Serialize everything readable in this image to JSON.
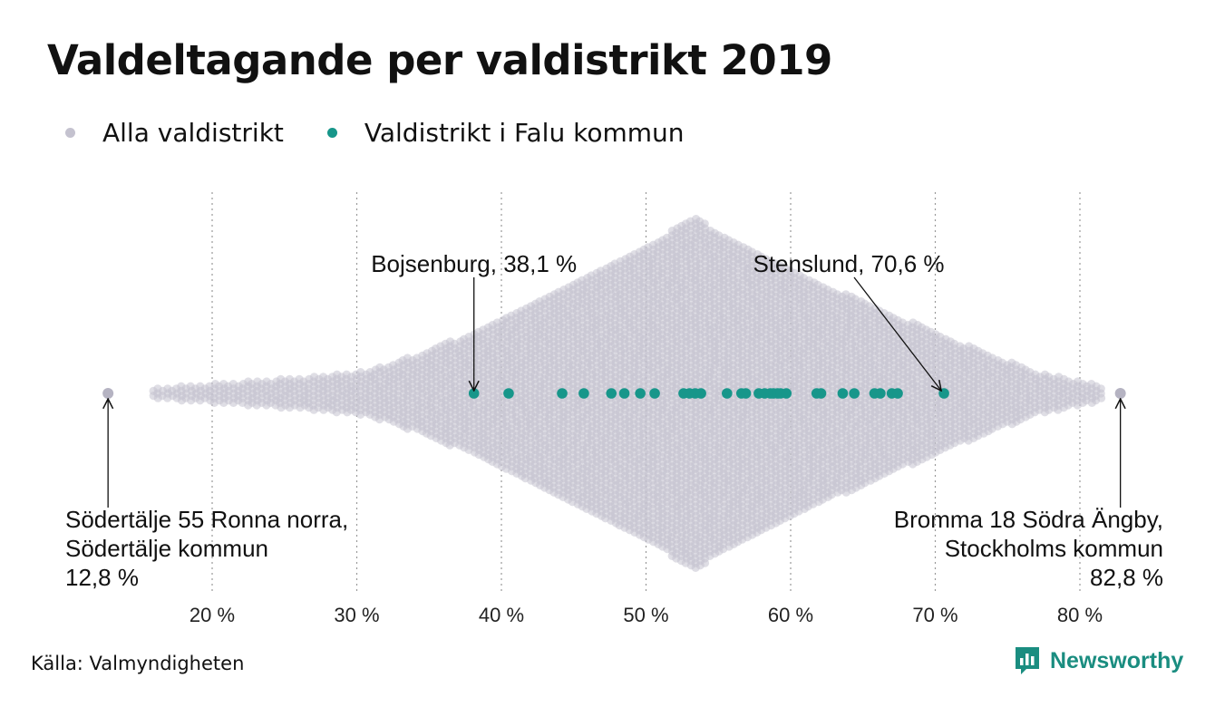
{
  "title": "Valdeltagande per valdistrikt 2019",
  "legend": [
    {
      "label": "Alla valdistrikt",
      "color": "#c4c2cf"
    },
    {
      "label": "Valdistrikt i Falu kommun",
      "color": "#17968a"
    }
  ],
  "source": "Källa: Valmyndigheten",
  "brand": {
    "name": "Newsworthy",
    "color": "#1a8d80",
    "icon": "newsworthy-logo-icon"
  },
  "chart_data": {
    "type": "scatter",
    "subtype": "beeswarm",
    "xlim": [
      12,
      84
    ],
    "ticks": [
      20,
      30,
      40,
      50,
      60,
      70,
      80
    ],
    "tick_labels": [
      "20 %",
      "30 %",
      "40 %",
      "50 %",
      "60 %",
      "70 %",
      "80 %"
    ],
    "grid": "vertical dotted",
    "legend_position": "top-left",
    "series": [
      {
        "name": "Alla valdistrikt",
        "color": "#c4c2cf",
        "distribution": {
          "min": 12.8,
          "max": 82.8,
          "peak": 53.5
        }
      },
      {
        "name": "Valdistrikt i Falu kommun",
        "color": "#17968a",
        "values": [
          38.1,
          40.5,
          44.2,
          45.7,
          47.6,
          48.5,
          49.6,
          50.6,
          52.6,
          53.0,
          53.4,
          53.8,
          55.6,
          56.6,
          56.9,
          57.8,
          58.2,
          58.6,
          58.8,
          59.1,
          59.3,
          59.7,
          61.8,
          62.1,
          63.6,
          64.4,
          65.8,
          66.2,
          67.0,
          67.4,
          70.6
        ]
      }
    ],
    "annotations": [
      {
        "name": "bojsenburg",
        "lines": [
          "Bojsenburg, 38,1 %"
        ],
        "value": 38.1,
        "align": "middle"
      },
      {
        "name": "stenslund",
        "lines": [
          "Stenslund, 70,6 %"
        ],
        "value": 70.6,
        "align": "middle"
      },
      {
        "name": "sodertalje",
        "lines": [
          "Södertälje 55 Ronna norra,",
          "Södertälje kommun",
          "12,8 %"
        ],
        "value": 12.8,
        "align": "start"
      },
      {
        "name": "bromma",
        "lines": [
          "Bromma 18 Södra Ängby,",
          "Stockholms kommun",
          "82,8 %"
        ],
        "value": 82.8,
        "align": "end"
      }
    ]
  }
}
